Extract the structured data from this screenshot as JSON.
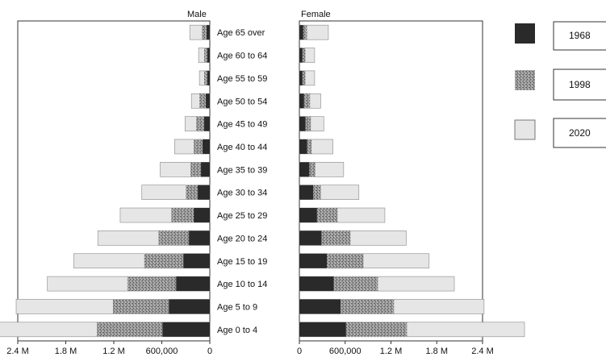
{
  "chart_data": {
    "type": "bar",
    "subtype": "population-pyramid",
    "panels": [
      {
        "title": "Male",
        "direction": "left",
        "xlim": [
          0,
          2400000
        ]
      },
      {
        "title": "Female",
        "direction": "right",
        "xlim": [
          0,
          2400000
        ]
      }
    ],
    "left_ticks": [
      "2.4 M",
      "1.8 M",
      "1.2 M",
      "600,000",
      "0"
    ],
    "right_ticks": [
      "0",
      "600,000",
      "1.2 M",
      "1.8 M",
      "2.4 M"
    ],
    "tick_values": [
      0,
      600000,
      1200000,
      1800000,
      2400000
    ],
    "categories": [
      "Age 65 over",
      "Age 60 to 64",
      "Age 55 to 59",
      "Age 50 to 54",
      "Age 45 to 49",
      "Age 40 to 44",
      "Age 35 to 39",
      "Age 30 to 34",
      "Age 25 to 29",
      "Age 20 to 24",
      "Age 15 to 19",
      "Age 10 to 14",
      "Age 5 to 9",
      "Age 0 to 4"
    ],
    "legend_position": "right",
    "series": [
      {
        "name": "1968",
        "color": "#2a2a2a",
        "pattern": "solid-dark",
        "male": [
          40000,
          30000,
          30000,
          50000,
          70000,
          90000,
          110000,
          150000,
          200000,
          260000,
          330000,
          420000,
          510000,
          590000
        ],
        "female": [
          50000,
          40000,
          40000,
          60000,
          80000,
          100000,
          130000,
          180000,
          230000,
          290000,
          360000,
          450000,
          540000,
          610000
        ]
      },
      {
        "name": "1998",
        "color": "#8a8a8a",
        "pattern": "speckled-grey",
        "male": [
          100000,
          70000,
          70000,
          130000,
          170000,
          200000,
          240000,
          300000,
          480000,
          640000,
          820000,
          1030000,
          1210000,
          1410000
        ],
        "female": [
          100000,
          80000,
          80000,
          140000,
          150000,
          160000,
          210000,
          280000,
          500000,
          670000,
          840000,
          1030000,
          1240000,
          1410000
        ]
      },
      {
        "name": "2020",
        "color": "#e6e6e6",
        "pattern": "light",
        "male": [
          250000,
          140000,
          130000,
          230000,
          310000,
          440000,
          620000,
          850000,
          1120000,
          1400000,
          1700000,
          2030000,
          2420000,
          2950000
        ],
        "female": [
          380000,
          200000,
          200000,
          280000,
          320000,
          440000,
          580000,
          780000,
          1120000,
          1400000,
          1700000,
          2030000,
          2420000,
          2950000
        ]
      }
    ]
  }
}
